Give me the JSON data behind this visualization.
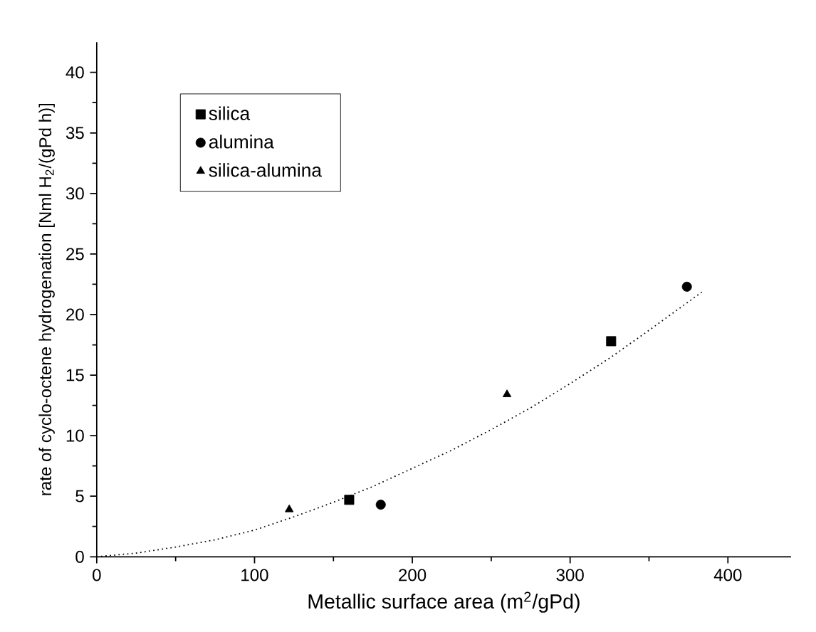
{
  "chart_data": {
    "type": "scatter",
    "xlabel": "Metallic surface area (m$^{2}$/gPd)",
    "ylabel": "rate of cyclo-octene hydrogenation [Nml H$_{2}$/(gPd h)]",
    "xlim": [
      0,
      440
    ],
    "ylim": [
      0,
      42.5
    ],
    "xticks": [
      0,
      100,
      200,
      300,
      400
    ],
    "yticks": [
      0,
      5,
      10,
      15,
      20,
      25,
      30,
      35,
      40
    ],
    "grid": false,
    "legend": "top left",
    "series": [
      {
        "name": "silica",
        "color": "#000000",
        "marker": "square",
        "x": [
          160,
          326
        ],
        "values": [
          4.7,
          17.8
        ]
      },
      {
        "name": "alumina",
        "color": "#000000",
        "marker": "circle",
        "x": [
          180,
          374
        ],
        "values": [
          4.3,
          22.3
        ]
      },
      {
        "name": "silica-alumina",
        "color": "#000000",
        "marker": "triangle",
        "x": [
          122,
          260
        ],
        "values": [
          3.9,
          13.4
        ]
      },
      {
        "type": "line",
        "color": "#000000",
        "marker": "none",
        "line_style": "dotted",
        "x": [
          0,
          25,
          50,
          75,
          100,
          125,
          150,
          175,
          200,
          225,
          250,
          275,
          300,
          325,
          350,
          385
        ],
        "values": [
          0,
          0.3,
          0.8,
          1.4,
          2.2,
          3.3,
          4.5,
          5.8,
          7.3,
          8.8,
          10.5,
          12.3,
          14.3,
          16.4,
          18.7,
          22.0
        ]
      }
    ]
  }
}
